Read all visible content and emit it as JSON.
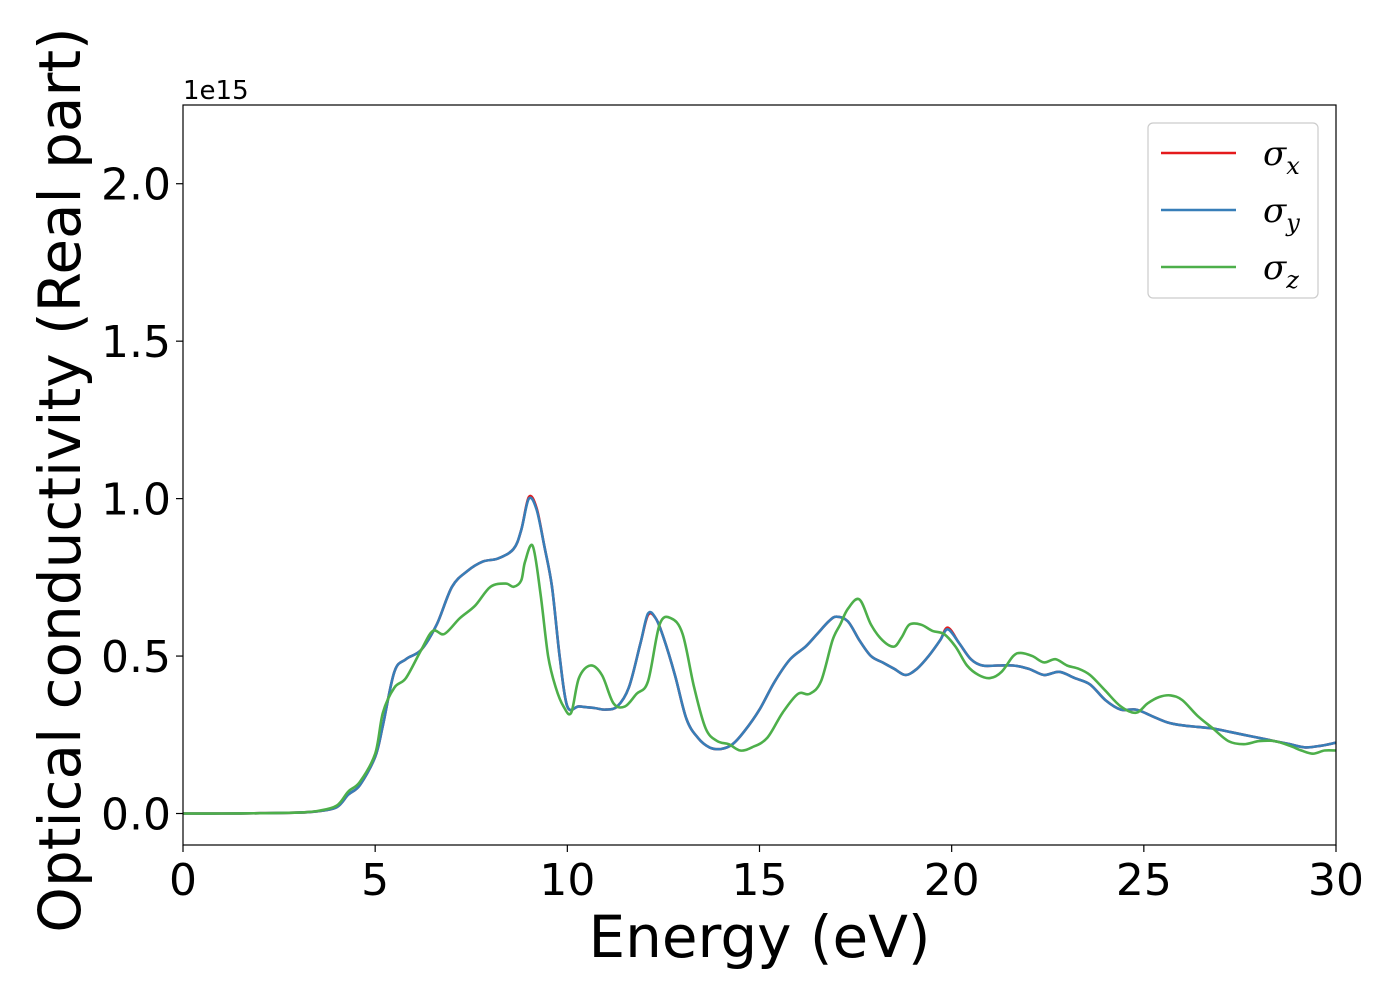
{
  "chart_data": {
    "type": "line",
    "title": "",
    "xlabel": "Energy (eV)",
    "ylabel": "Optical conductivity (Real part)",
    "y_offset_label": "1e15",
    "xlim": [
      0,
      30
    ],
    "ylim": [
      -0.1,
      2.25
    ],
    "xticks": [
      0,
      5,
      10,
      15,
      20,
      25,
      30
    ],
    "xtick_labels": [
      "0",
      "5",
      "10",
      "15",
      "20",
      "25",
      "30"
    ],
    "yticks": [
      0.0,
      0.5,
      1.0,
      1.5,
      2.0
    ],
    "ytick_labels": [
      "0.0",
      "0.5",
      "1.0",
      "1.5",
      "2.0"
    ],
    "grid": false,
    "legend_position": "top-right",
    "series": [
      {
        "name": "σx",
        "symbol": "σ",
        "subscript": "x",
        "color": "#e41a1c",
        "x": [
          0,
          1,
          2,
          3,
          3.5,
          4,
          4.3,
          4.6,
          5,
          5.2,
          5.5,
          5.8,
          6.2,
          6.6,
          7,
          7.4,
          7.8,
          8.2,
          8.6,
          8.8,
          9,
          9.2,
          9.4,
          9.6,
          9.8,
          10,
          10.3,
          10.7,
          11,
          11.3,
          11.6,
          11.9,
          12.1,
          12.3,
          12.5,
          12.8,
          13.1,
          13.4,
          13.7,
          14,
          14.3,
          14.6,
          15,
          15.4,
          15.8,
          16.2,
          16.5,
          16.8,
          17,
          17.3,
          17.6,
          17.9,
          18.2,
          18.5,
          18.8,
          19.1,
          19.4,
          19.7,
          19.9,
          20.2,
          20.5,
          20.8,
          21.2,
          21.6,
          22,
          22.4,
          22.8,
          23.2,
          23.6,
          24,
          24.4,
          24.8,
          25.2,
          25.6,
          26,
          26.4,
          26.8,
          27.2,
          27.6,
          28,
          28.4,
          28.8,
          29.2,
          29.6,
          30
        ],
        "values": [
          0,
          0,
          0.001,
          0.003,
          0.007,
          0.02,
          0.06,
          0.09,
          0.18,
          0.28,
          0.45,
          0.49,
          0.52,
          0.6,
          0.72,
          0.77,
          0.8,
          0.81,
          0.84,
          0.9,
          1.005,
          0.97,
          0.85,
          0.72,
          0.5,
          0.34,
          0.34,
          0.335,
          0.33,
          0.34,
          0.4,
          0.54,
          0.63,
          0.62,
          0.56,
          0.44,
          0.3,
          0.24,
          0.21,
          0.205,
          0.22,
          0.26,
          0.33,
          0.42,
          0.49,
          0.53,
          0.57,
          0.61,
          0.625,
          0.61,
          0.55,
          0.5,
          0.48,
          0.46,
          0.44,
          0.46,
          0.5,
          0.55,
          0.59,
          0.54,
          0.49,
          0.47,
          0.47,
          0.47,
          0.46,
          0.44,
          0.45,
          0.43,
          0.41,
          0.36,
          0.33,
          0.33,
          0.31,
          0.29,
          0.28,
          0.275,
          0.27,
          0.26,
          0.25,
          0.24,
          0.23,
          0.22,
          0.21,
          0.215,
          0.225
        ]
      },
      {
        "name": "σy",
        "symbol": "σ",
        "subscript": "y",
        "color": "#377eb8",
        "x": [
          0,
          1,
          2,
          3,
          3.5,
          4,
          4.3,
          4.6,
          5,
          5.2,
          5.5,
          5.8,
          6.2,
          6.6,
          7,
          7.4,
          7.8,
          8.2,
          8.6,
          8.8,
          9,
          9.2,
          9.4,
          9.6,
          9.8,
          10,
          10.3,
          10.7,
          11,
          11.3,
          11.6,
          11.9,
          12.1,
          12.3,
          12.5,
          12.8,
          13.1,
          13.4,
          13.7,
          14,
          14.3,
          14.6,
          15,
          15.4,
          15.8,
          16.2,
          16.5,
          16.8,
          17,
          17.3,
          17.6,
          17.9,
          18.2,
          18.5,
          18.8,
          19.1,
          19.4,
          19.7,
          19.9,
          20.2,
          20.5,
          20.8,
          21.2,
          21.6,
          22,
          22.4,
          22.8,
          23.2,
          23.6,
          24,
          24.4,
          24.8,
          25.2,
          25.6,
          26,
          26.4,
          26.8,
          27.2,
          27.6,
          28,
          28.4,
          28.8,
          29.2,
          29.6,
          30
        ],
        "values": [
          0,
          0,
          0.001,
          0.003,
          0.007,
          0.02,
          0.06,
          0.09,
          0.18,
          0.28,
          0.45,
          0.49,
          0.52,
          0.6,
          0.72,
          0.77,
          0.8,
          0.81,
          0.84,
          0.9,
          1.0,
          0.965,
          0.85,
          0.72,
          0.5,
          0.34,
          0.34,
          0.335,
          0.33,
          0.34,
          0.4,
          0.54,
          0.635,
          0.62,
          0.56,
          0.44,
          0.3,
          0.24,
          0.21,
          0.205,
          0.22,
          0.26,
          0.33,
          0.42,
          0.49,
          0.53,
          0.57,
          0.61,
          0.625,
          0.61,
          0.55,
          0.5,
          0.48,
          0.46,
          0.44,
          0.46,
          0.5,
          0.55,
          0.585,
          0.54,
          0.49,
          0.47,
          0.47,
          0.47,
          0.46,
          0.44,
          0.45,
          0.43,
          0.41,
          0.36,
          0.33,
          0.33,
          0.31,
          0.29,
          0.28,
          0.275,
          0.27,
          0.26,
          0.25,
          0.24,
          0.23,
          0.22,
          0.21,
          0.215,
          0.225
        ]
      },
      {
        "name": "σz",
        "symbol": "σ",
        "subscript": "z",
        "color": "#4daf4a",
        "x": [
          0,
          1,
          2,
          3,
          3.5,
          4,
          4.3,
          4.6,
          5,
          5.2,
          5.5,
          5.8,
          6.2,
          6.5,
          6.8,
          7.2,
          7.6,
          8,
          8.4,
          8.6,
          8.8,
          8.9,
          9.1,
          9.3,
          9.5,
          9.7,
          9.9,
          10.1,
          10.3,
          10.6,
          10.9,
          11.2,
          11.5,
          11.8,
          12.1,
          12.4,
          12.7,
          13,
          13.3,
          13.6,
          13.9,
          14.2,
          14.5,
          14.8,
          15.2,
          15.6,
          16,
          16.3,
          16.6,
          16.9,
          17.1,
          17.3,
          17.6,
          17.9,
          18.2,
          18.5,
          18.7,
          18.9,
          19.2,
          19.5,
          19.8,
          20.1,
          20.4,
          20.7,
          21,
          21.3,
          21.6,
          21.8,
          22.1,
          22.4,
          22.7,
          23,
          23.3,
          23.6,
          24,
          24.4,
          24.8,
          25.1,
          25.4,
          25.7,
          26,
          26.4,
          26.8,
          27.2,
          27.6,
          28,
          28.4,
          28.8,
          29.1,
          29.4,
          29.7,
          30
        ],
        "values": [
          0,
          0,
          0.001,
          0.003,
          0.008,
          0.025,
          0.07,
          0.1,
          0.19,
          0.32,
          0.4,
          0.43,
          0.52,
          0.58,
          0.57,
          0.62,
          0.66,
          0.72,
          0.73,
          0.72,
          0.74,
          0.8,
          0.85,
          0.7,
          0.5,
          0.4,
          0.34,
          0.32,
          0.43,
          0.47,
          0.44,
          0.35,
          0.34,
          0.38,
          0.42,
          0.6,
          0.62,
          0.57,
          0.4,
          0.27,
          0.23,
          0.22,
          0.2,
          0.21,
          0.24,
          0.32,
          0.38,
          0.38,
          0.42,
          0.55,
          0.6,
          0.65,
          0.68,
          0.6,
          0.55,
          0.53,
          0.56,
          0.6,
          0.6,
          0.58,
          0.57,
          0.53,
          0.47,
          0.44,
          0.43,
          0.45,
          0.5,
          0.51,
          0.5,
          0.48,
          0.49,
          0.47,
          0.46,
          0.44,
          0.39,
          0.34,
          0.32,
          0.35,
          0.37,
          0.375,
          0.36,
          0.31,
          0.27,
          0.23,
          0.22,
          0.23,
          0.23,
          0.215,
          0.2,
          0.19,
          0.2,
          0.2
        ]
      }
    ]
  }
}
